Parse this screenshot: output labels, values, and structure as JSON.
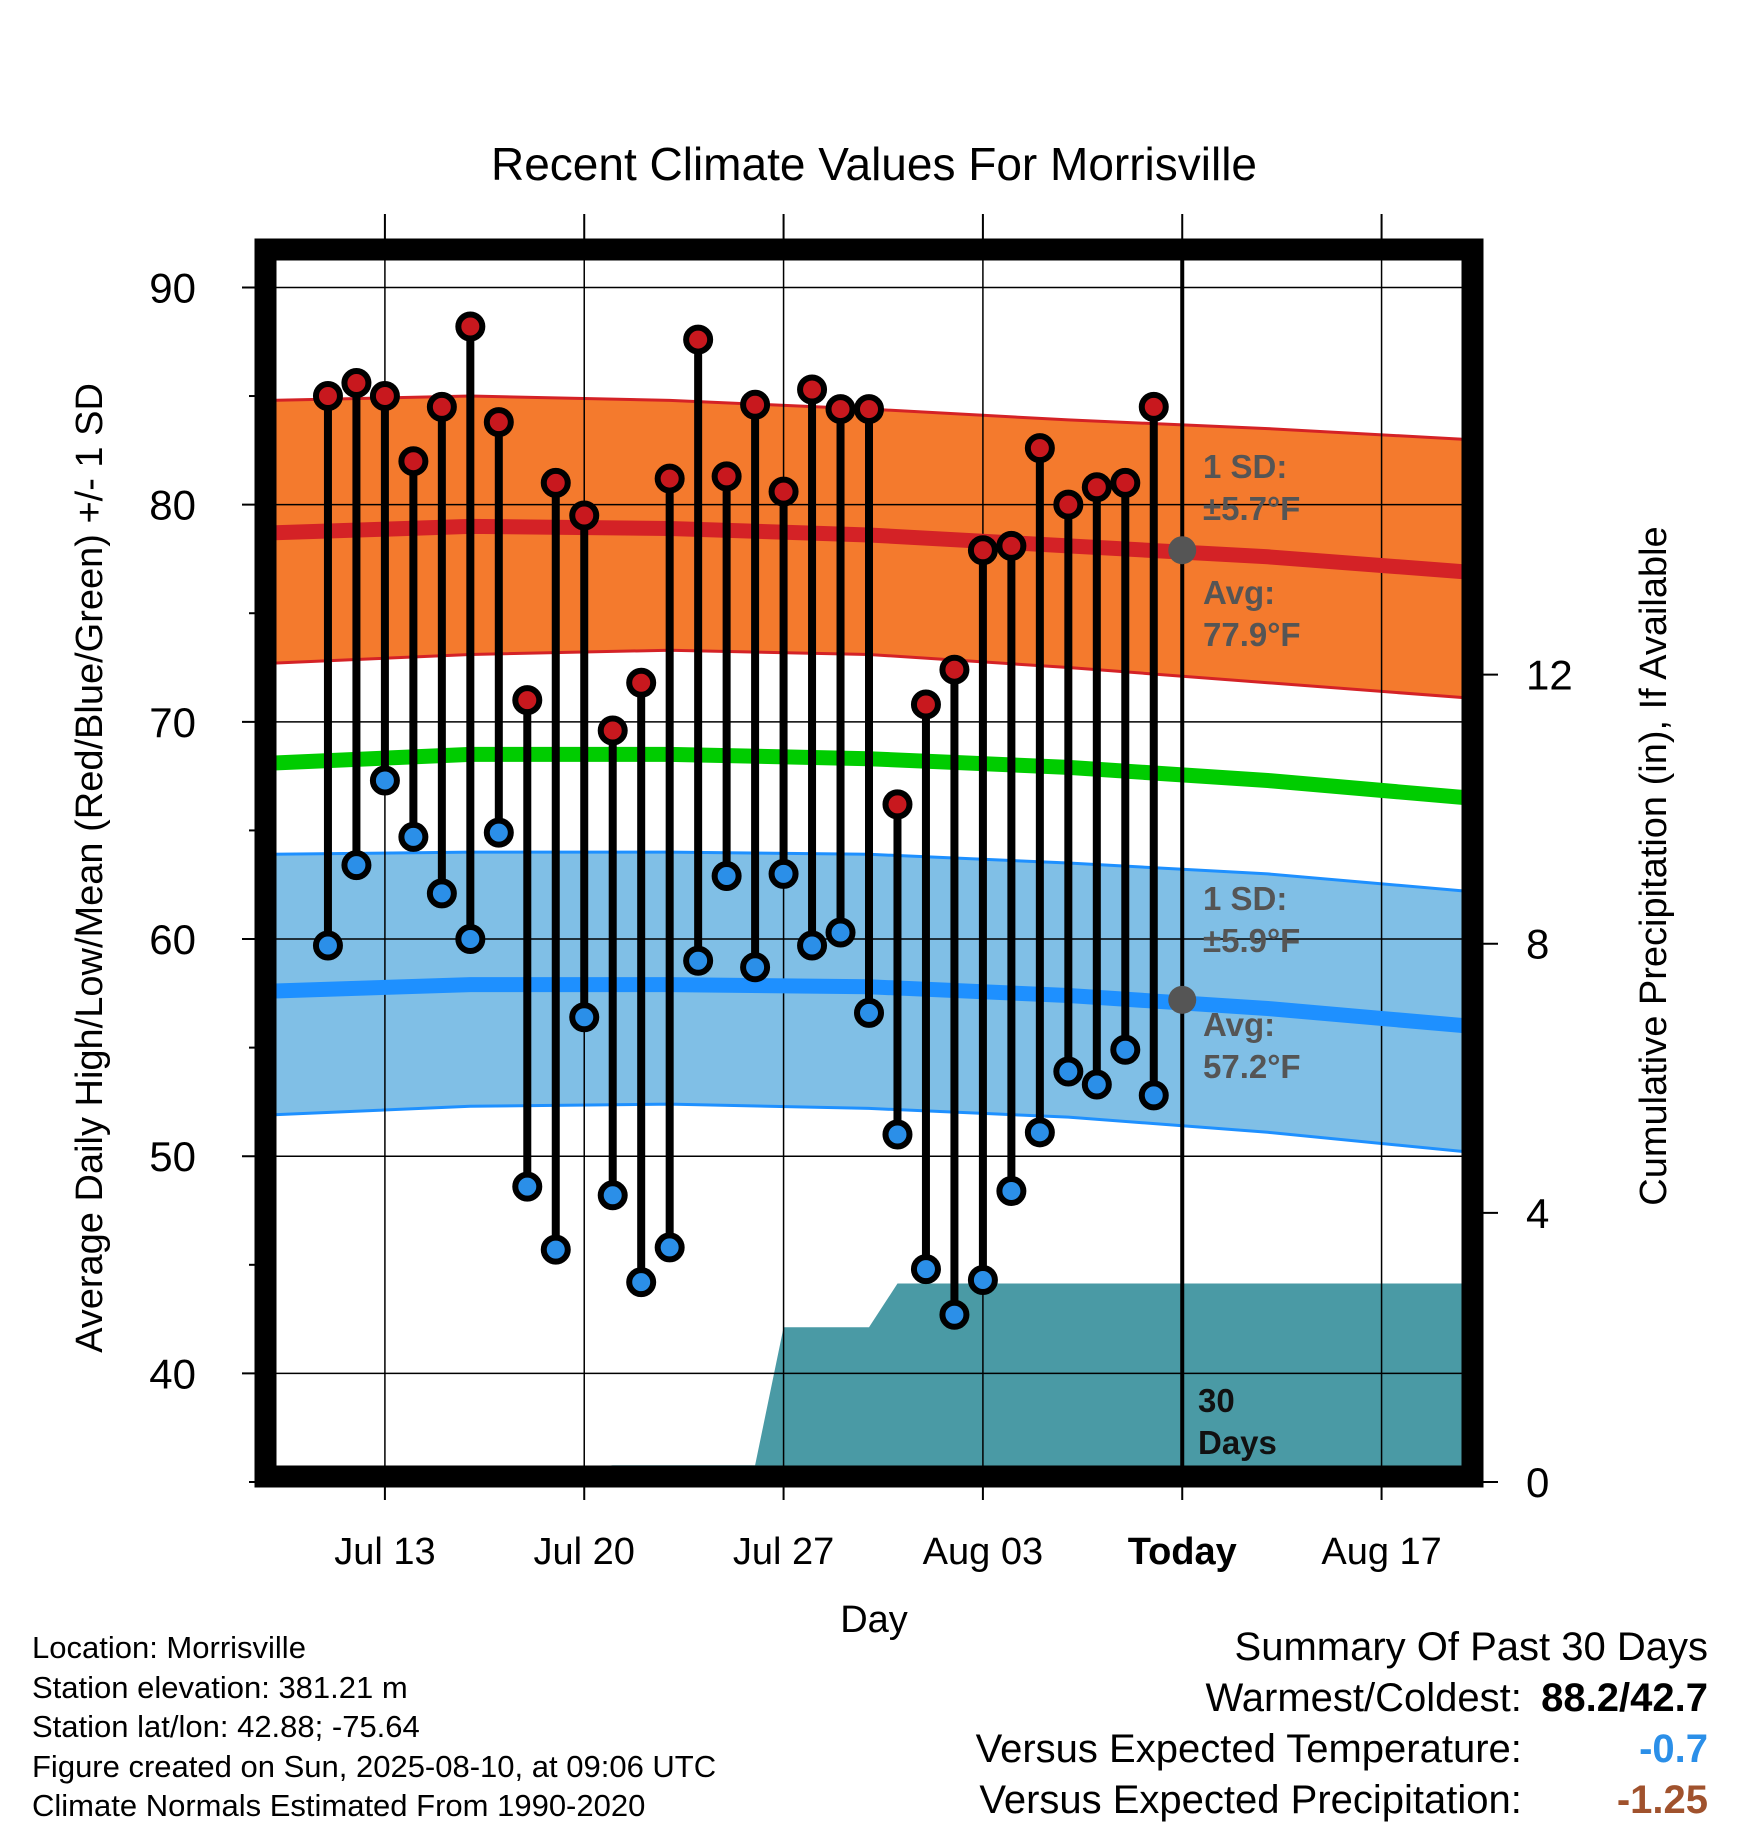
{
  "chart_data": {
    "type": "line",
    "title": "Recent Climate Values For Morrisville",
    "xlabel": "Day",
    "ylabel": "Average Daily High/Low/Mean (Red/Blue/Green) +/- 1 SD",
    "y2label": "Cumulative Precipitation (in), If Available",
    "ylim": [
      35,
      92
    ],
    "y2lim": [
      0,
      18.4
    ],
    "yticks": [
      "40",
      "50",
      "60",
      "70",
      "80",
      "90"
    ],
    "y2ticks": [
      "0",
      "4",
      "8",
      "12"
    ],
    "xlim": [
      "Jul 09",
      "Aug 20"
    ],
    "x_tick_labels": [
      "Jul 13",
      "Jul 20",
      "Jul 27",
      "Aug 03",
      "Today",
      "Aug 17"
    ],
    "today": "Aug 10",
    "grid": true,
    "series": [
      {
        "name": "High",
        "color": "#c8181e",
        "x": [
          "Jul 11",
          "Jul 12",
          "Jul 13",
          "Jul 14",
          "Jul 15",
          "Jul 16",
          "Jul 17",
          "Jul 18",
          "Jul 19",
          "Jul 20",
          "Jul 21",
          "Jul 22",
          "Jul 23",
          "Jul 24",
          "Jul 25",
          "Jul 26",
          "Jul 27",
          "Jul 28",
          "Jul 29",
          "Jul 30",
          "Jul 31",
          "Aug 01",
          "Aug 02",
          "Aug 03",
          "Aug 04",
          "Aug 05",
          "Aug 06",
          "Aug 07",
          "Aug 08",
          "Aug 09"
        ],
        "values": [
          85.0,
          85.6,
          85.0,
          82.0,
          84.5,
          88.2,
          83.8,
          71.0,
          81.0,
          79.5,
          69.6,
          71.8,
          81.2,
          87.6,
          81.3,
          84.6,
          80.6,
          85.3,
          84.4,
          84.4,
          66.2,
          70.8,
          72.4,
          77.9,
          78.1,
          82.6,
          80.0,
          80.8,
          81.0,
          84.5
        ]
      },
      {
        "name": "Low",
        "color": "#2b8fe8",
        "x": [
          "Jul 11",
          "Jul 12",
          "Jul 13",
          "Jul 14",
          "Jul 15",
          "Jul 16",
          "Jul 17",
          "Jul 18",
          "Jul 19",
          "Jul 20",
          "Jul 21",
          "Jul 22",
          "Jul 23",
          "Jul 24",
          "Jul 25",
          "Jul 26",
          "Jul 27",
          "Jul 28",
          "Jul 29",
          "Jul 30",
          "Jul 31",
          "Aug 01",
          "Aug 02",
          "Aug 03",
          "Aug 04",
          "Aug 05",
          "Aug 06",
          "Aug 07",
          "Aug 08",
          "Aug 09"
        ],
        "values": [
          59.7,
          63.4,
          67.3,
          64.7,
          62.1,
          60.0,
          64.9,
          48.6,
          45.7,
          56.4,
          48.2,
          44.2,
          45.8,
          59.0,
          62.9,
          58.7,
          63.0,
          59.7,
          60.3,
          56.6,
          51.0,
          44.8,
          42.7,
          44.3,
          48.4,
          51.1,
          53.9,
          53.3,
          54.9,
          52.8
        ]
      },
      {
        "name": "Normal High",
        "color": "#d42226",
        "x": [
          "Jul 09",
          "Jul 16",
          "Jul 23",
          "Jul 30",
          "Aug 06",
          "Aug 13",
          "Aug 20"
        ],
        "values": [
          78.7,
          79.0,
          78.9,
          78.6,
          78.1,
          77.6,
          76.9
        ],
        "sd_band": [
          72.7,
          73.1,
          73.3,
          73.1,
          72.5,
          71.8,
          71.1
        ],
        "sd_band_upper": [
          84.8,
          85.0,
          84.8,
          84.4,
          83.9,
          83.5,
          83.0
        ]
      },
      {
        "name": "Normal Mean",
        "color": "#00cc00",
        "x": [
          "Jul 09",
          "Jul 16",
          "Jul 23",
          "Jul 30",
          "Aug 06",
          "Aug 13",
          "Aug 20"
        ],
        "values": [
          68.1,
          68.5,
          68.5,
          68.3,
          67.9,
          67.3,
          66.5
        ]
      },
      {
        "name": "Normal Low",
        "color": "#1e90ff",
        "x": [
          "Jul 09",
          "Jul 16",
          "Jul 23",
          "Jul 30",
          "Aug 06",
          "Aug 13",
          "Aug 20"
        ],
        "values": [
          57.6,
          57.9,
          57.9,
          57.8,
          57.4,
          56.8,
          56.0
        ],
        "sd_band": [
          51.9,
          52.3,
          52.4,
          52.2,
          51.8,
          51.1,
          50.2
        ],
        "sd_band_upper": [
          63.9,
          64.0,
          64.0,
          63.9,
          63.5,
          63.0,
          62.2
        ]
      },
      {
        "name": "Cumulative Precipitation",
        "color": "#4a9aa5",
        "x": [
          "Jul 09",
          "Jul 11",
          "Jul 12",
          "Jul 13",
          "Jul 16",
          "Jul 20",
          "Jul 21",
          "Jul 26",
          "Jul 27",
          "Jul 30",
          "Jul 31",
          "Aug 20"
        ],
        "values": [
          0.0,
          0.0,
          0.05,
          0.15,
          0.2,
          0.2,
          0.25,
          0.25,
          2.3,
          2.3,
          2.95,
          2.95
        ]
      }
    ],
    "annotations": {
      "high_sd_label": "1 SD:",
      "high_sd_value": "±5.7°F",
      "high_avg_label": "Avg:",
      "high_avg_value": "77.9°F",
      "low_sd_label": "1 SD:",
      "low_sd_value": "±5.9°F",
      "low_avg_label": "Avg:",
      "low_avg_value": "57.2°F",
      "window_line1": "30",
      "window_line2": "Days"
    }
  },
  "footer": {
    "location": "Location: Morrisville",
    "elevation": "Station elevation: 381.21 m",
    "latlon": "Station lat/lon: 42.88; -75.64",
    "created": "Figure created on Sun, 2025-08-10, at 09:06 UTC",
    "normals": "Climate Normals Estimated From 1990-2020"
  },
  "summary": {
    "heading": "Summary Of Past 30 Days",
    "warm_cold_label": "Warmest/Coldest:",
    "warm_cold_value": "88.2/42.7",
    "temp_label": "Versus Expected Temperature:",
    "temp_value": "-0.7",
    "temp_color": "#2b8fe8",
    "precip_label": "Versus Expected Precipitation:",
    "precip_value": "-1.25",
    "precip_color": "#a0522d"
  }
}
